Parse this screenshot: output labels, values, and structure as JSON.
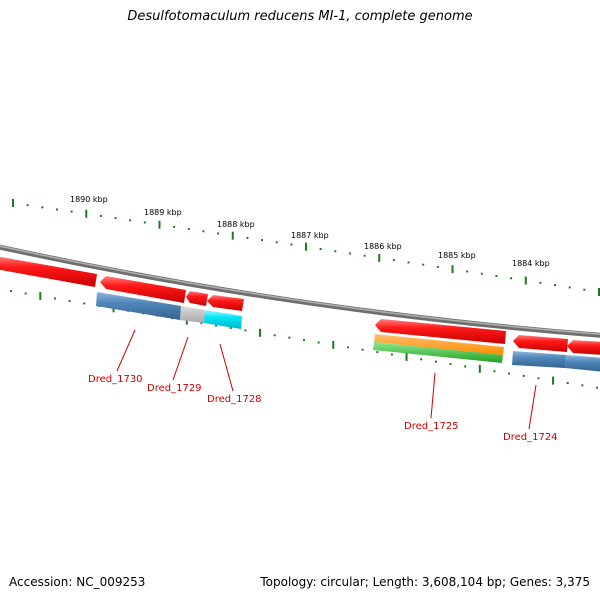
{
  "title": "Desulfotomaculum reducens MI-1, complete genome",
  "accession": "Accession: NC_009253",
  "summary": "Topology: circular; Length: 3,608,104 bp; Genes: 3,375",
  "colors": {
    "backbone": "#8c8c8c",
    "ticks": "#1e7a1e",
    "cds": "#ff1a1a",
    "label": "#cc0000",
    "steelblue": "#4f86b8",
    "gray": "#b8b8b8",
    "cyan": "#00e5f5",
    "orange": "#ff9a1a",
    "green": "#2fc02f"
  },
  "kbp_labels": [
    "1890 kbp",
    "1889 kbp",
    "1888 kbp",
    "1887 kbp",
    "1886 kbp",
    "1885 kbp",
    "1884 kbp"
  ],
  "gene_labels": [
    "Dred_1730",
    "Dred_1729",
    "Dred_1728",
    "Dred_1725",
    "Dred_1724"
  ]
}
